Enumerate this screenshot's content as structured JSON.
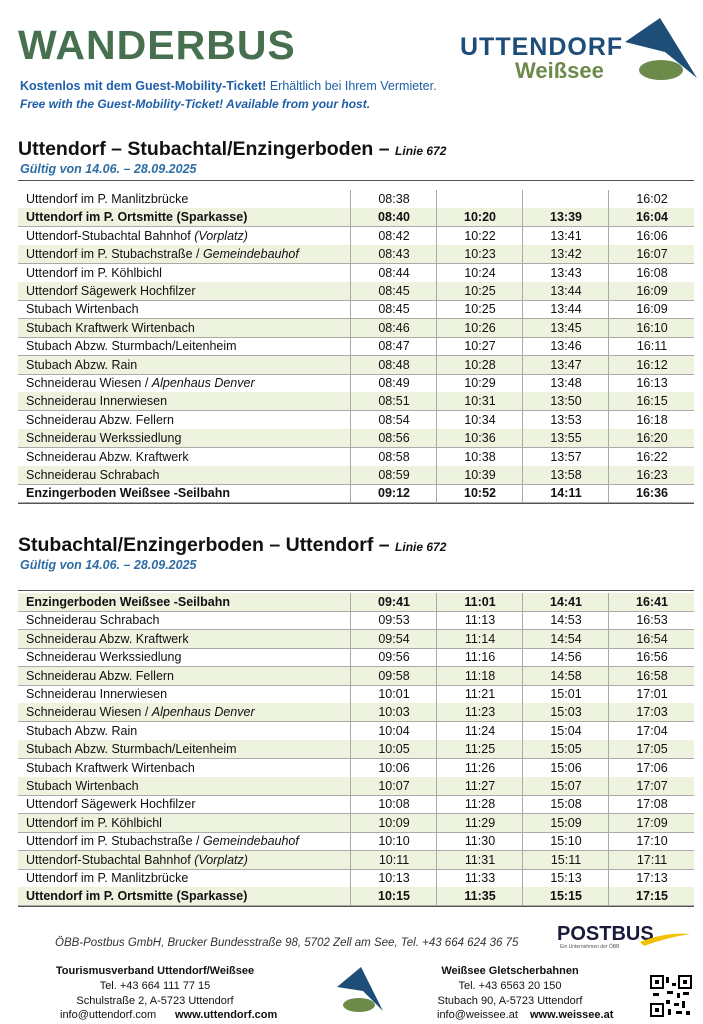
{
  "header": {
    "title": "WANDERBUS",
    "subtitle_de_bold": "Kostenlos mit dem Guest-Mobility-Ticket!",
    "subtitle_de": "Erhältlich bei Ihrem Vermieter.",
    "subtitle_en": "Free with the Guest-Mobility-Ticket! Available from your host.",
    "logo_top": "UTTENDORF",
    "logo_bottom": "Weißsee"
  },
  "sections": [
    {
      "title": "Uttendorf – Stubachtal/Enzingerboden –",
      "line": "Linie 672",
      "validity": "Gültig von 14.06. – 28.09.2025",
      "shaded_rows": "odd",
      "rows": [
        {
          "stop": "Uttendorf im P. Manlitzbrücke",
          "times": [
            "08:38",
            null,
            null,
            "16:02"
          ]
        },
        {
          "stop": "Uttendorf im P. Ortsmitte (Sparkasse)",
          "bold": true,
          "times": [
            "08:40",
            "10:20",
            "13:39",
            "16:04"
          ]
        },
        {
          "stop": "Uttendorf-Stubachtal Bahnhof",
          "note": "(Vorplatz)",
          "times": [
            "08:42",
            "10:22",
            "13:41",
            "16:06"
          ]
        },
        {
          "stop": "Uttendorf im P. Stubachstraße /",
          "note": "Gemeindebauhof",
          "times": [
            "08:43",
            "10:23",
            "13:42",
            "16:07"
          ]
        },
        {
          "stop": "Uttendorf im P. Köhlbichl",
          "times": [
            "08:44",
            "10:24",
            "13:43",
            "16:08"
          ]
        },
        {
          "stop": "Uttendorf Sägewerk Hochfilzer",
          "times": [
            "08:45",
            "10:25",
            "13:44",
            "16:09"
          ]
        },
        {
          "stop": "Stubach Wirtenbach",
          "times": [
            "08:45",
            "10:25",
            "13:44",
            "16:09"
          ]
        },
        {
          "stop": "Stubach Kraftwerk Wirtenbach",
          "times": [
            "08:46",
            "10:26",
            "13:45",
            "16:10"
          ]
        },
        {
          "stop": "Stubach Abzw. Sturmbach/Leitenheim",
          "times": [
            "08:47",
            "10:27",
            "13:46",
            "16:11"
          ]
        },
        {
          "stop": "Stubach Abzw. Rain",
          "times": [
            "08:48",
            "10:28",
            "13:47",
            "16:12"
          ]
        },
        {
          "stop": "Schneiderau Wiesen /",
          "note": "Alpenhaus Denver",
          "times": [
            "08:49",
            "10:29",
            "13:48",
            "16:13"
          ]
        },
        {
          "stop": "Schneiderau Innerwiesen",
          "times": [
            "08:51",
            "10:31",
            "13:50",
            "16:15"
          ]
        },
        {
          "stop": "Schneiderau Abzw. Fellern",
          "times": [
            "08:54",
            "10:34",
            "13:53",
            "16:18"
          ]
        },
        {
          "stop": "Schneiderau Werkssiedlung",
          "times": [
            "08:56",
            "10:36",
            "13:55",
            "16:20"
          ]
        },
        {
          "stop": "Schneiderau Abzw. Kraftwerk",
          "times": [
            "08:58",
            "10:38",
            "13:57",
            "16:22"
          ]
        },
        {
          "stop": "Schneiderau Schrabach",
          "times": [
            "08:59",
            "10:39",
            "13:58",
            "16:23"
          ]
        },
        {
          "stop": "Enzingerboden Weißsee -Seilbahn",
          "bold": true,
          "times": [
            "09:12",
            "10:52",
            "14:11",
            "16:36"
          ]
        }
      ]
    },
    {
      "title": "Stubachtal/Enzingerboden – Uttendorf –",
      "line": "Linie 672",
      "validity": "Gültig von 14.06. – 28.09.2025",
      "shaded_rows": "even",
      "rows": [
        {
          "stop": "Enzingerboden Weißsee -Seilbahn",
          "bold": true,
          "times": [
            "09:41",
            "11:01",
            "14:41",
            "16:41"
          ]
        },
        {
          "stop": "Schneiderau Schrabach",
          "times": [
            "09:53",
            "11:13",
            "14:53",
            "16:53"
          ]
        },
        {
          "stop": "Schneiderau Abzw. Kraftwerk",
          "times": [
            "09:54",
            "11:14",
            "14:54",
            "16:54"
          ]
        },
        {
          "stop": "Schneiderau Werkssiedlung",
          "times": [
            "09:56",
            "11:16",
            "14:56",
            "16:56"
          ]
        },
        {
          "stop": "Schneiderau Abzw. Fellern",
          "times": [
            "09:58",
            "11:18",
            "14:58",
            "16:58"
          ]
        },
        {
          "stop": "Schneiderau Innerwiesen",
          "times": [
            "10:01",
            "11:21",
            "15:01",
            "17:01"
          ]
        },
        {
          "stop": "Schneiderau Wiesen /",
          "note": "Alpenhaus Denver",
          "times": [
            "10:03",
            "11:23",
            "15:03",
            "17:03"
          ]
        },
        {
          "stop": "Stubach Abzw. Rain",
          "times": [
            "10:04",
            "11:24",
            "15:04",
            "17:04"
          ]
        },
        {
          "stop": "Stubach Abzw. Sturmbach/Leitenheim",
          "times": [
            "10:05",
            "11:25",
            "15:05",
            "17:05"
          ]
        },
        {
          "stop": "Stubach Kraftwerk Wirtenbach",
          "times": [
            "10:06",
            "11:26",
            "15:06",
            "17:06"
          ]
        },
        {
          "stop": "Stubach Wirtenbach",
          "times": [
            "10:07",
            "11:27",
            "15:07",
            "17:07"
          ]
        },
        {
          "stop": "Uttendorf Sägewerk Hochfilzer",
          "times": [
            "10:08",
            "11:28",
            "15:08",
            "17:08"
          ]
        },
        {
          "stop": "Uttendorf im P. Köhlbichl",
          "times": [
            "10:09",
            "11:29",
            "15:09",
            "17:09"
          ]
        },
        {
          "stop": "Uttendorf im P. Stubachstraße /",
          "note": "Gemeindebauhof",
          "times": [
            "10:10",
            "11:30",
            "15:10",
            "17:10"
          ]
        },
        {
          "stop": "Uttendorf-Stubachtal Bahnhof",
          "note": "(Vorplatz)",
          "times": [
            "10:11",
            "11:31",
            "15:11",
            "17:11"
          ]
        },
        {
          "stop": "Uttendorf im P. Manlitzbrücke",
          "times": [
            "10:13",
            "11:33",
            "15:13",
            "17:13"
          ]
        },
        {
          "stop": "Uttendorf im P. Ortsmitte (Sparkasse)",
          "bold": true,
          "times": [
            "10:15",
            "11:35",
            "15:15",
            "17:15"
          ]
        }
      ]
    }
  ],
  "footer": {
    "operator": "ÖBB-Postbus GmbH, Brucker Bundesstraße 98, 5702 Zell am See, Tel. +43 664 624 36 75",
    "postbus": "POSTBUS",
    "postbus_tag": "Ein Unternehmen der ÖBB",
    "left": {
      "name": "Tourismusverband Uttendorf/Weißsee",
      "tel": "Tel. +43 664 111 77 15",
      "address": "Schulstraße 2, A-5723 Uttendorf",
      "email": "info@uttendorf.com",
      "web": "www.uttendorf.com"
    },
    "right": {
      "name": "Weißsee Gletscherbahnen",
      "tel": "Tel. +43 6563 20 150",
      "address": "Stubach 90, A-5723 Uttendorf",
      "email": "info@weissee.at",
      "web": "www.weissee.at"
    }
  }
}
